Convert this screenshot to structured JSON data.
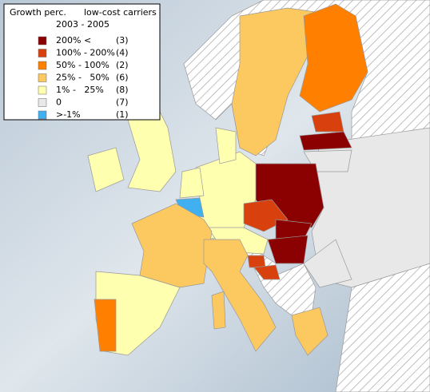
{
  "legend": {
    "title": "Growth perc.",
    "subtitle": "low-cost carriers",
    "period": "2003 - 2005",
    "items": [
      {
        "color": "#8b0000",
        "label": "200% <",
        "count": "(3)"
      },
      {
        "color": "#d8400e",
        "label": "100% - 200%",
        "count": "(4)"
      },
      {
        "color": "#ff8000",
        "label": "50% - 100%",
        "count": "(2)"
      },
      {
        "color": "#fcc860",
        "label": "25% -   50%",
        "count": "(6)"
      },
      {
        "color": "#ffffb0",
        "label": "1% -   25%",
        "count": "(8)"
      },
      {
        "color": "#e8e8e8",
        "label": "0",
        "count": "(7)"
      },
      {
        "color": "#40b0f0",
        "label": ">-1%",
        "count": "(1)"
      }
    ]
  }
}
